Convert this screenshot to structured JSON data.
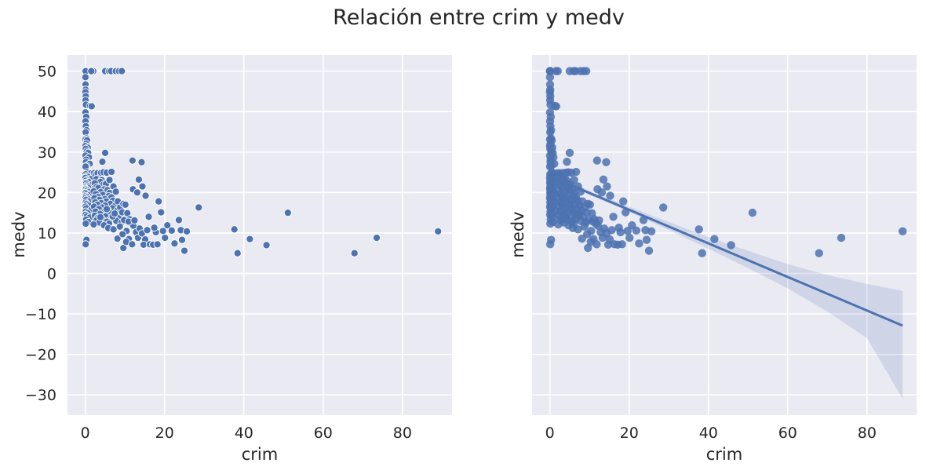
{
  "figure": {
    "suptitle": "Relación entre crim y medv"
  },
  "chart_data": [
    {
      "type": "scatter",
      "title": "",
      "xlabel": "crim",
      "ylabel": "medv",
      "xlim": [
        -4.5,
        92.5
      ],
      "ylim": [
        -35,
        54
      ],
      "xticks": [
        0,
        20,
        40,
        60,
        80
      ],
      "yticks": [
        -30,
        -20,
        -10,
        0,
        10,
        20,
        30,
        40,
        50
      ],
      "xtick_labels": [
        "0",
        "20",
        "40",
        "60",
        "80"
      ],
      "ytick_labels": [
        "−30",
        "−20",
        "−10",
        "0",
        "10",
        "20",
        "30",
        "40",
        "50"
      ],
      "grid": true,
      "marker": "small circle with white edge",
      "color": "#4c72b0",
      "points": [
        [
          0.01,
          50
        ],
        [
          0.02,
          50
        ],
        [
          0.04,
          50
        ],
        [
          0.06,
          50
        ],
        [
          0.03,
          48.5
        ],
        [
          0.05,
          46.7
        ],
        [
          0.08,
          45.4
        ],
        [
          0.02,
          44.8
        ],
        [
          0.1,
          43.8
        ],
        [
          0.06,
          42.8
        ],
        [
          0.15,
          41.7
        ],
        [
          0.03,
          39.8
        ],
        [
          0.22,
          38.7
        ],
        [
          0.05,
          37.6
        ],
        [
          0.12,
          36.4
        ],
        [
          0.3,
          35.4
        ],
        [
          0.08,
          34.9
        ],
        [
          0.25,
          33.4
        ],
        [
          0.04,
          33.1
        ],
        [
          0.45,
          32.9
        ],
        [
          0.18,
          32
        ],
        [
          0.02,
          31.5
        ],
        [
          0.6,
          31.1
        ],
        [
          0.1,
          30.8
        ],
        [
          0.35,
          30.1
        ],
        [
          0.7,
          29.8
        ],
        [
          0.05,
          29.1
        ],
        [
          0.9,
          28.7
        ],
        [
          0.2,
          28.1
        ],
        [
          0.15,
          27.5
        ],
        [
          1.1,
          27.1
        ],
        [
          0.3,
          26.6
        ],
        [
          0.05,
          26.4
        ],
        [
          0.5,
          25
        ],
        [
          1.3,
          24.7
        ],
        [
          0.08,
          24.5
        ],
        [
          0.25,
          24
        ],
        [
          0.6,
          23.9
        ],
        [
          0.03,
          23.6
        ],
        [
          1.5,
          23.4
        ],
        [
          0.4,
          23.1
        ],
        [
          0.12,
          22.9
        ],
        [
          0.8,
          22.6
        ],
        [
          0.06,
          22.4
        ],
        [
          0.2,
          22.2
        ],
        [
          1.8,
          22
        ],
        [
          0.35,
          21.7
        ],
        [
          0.1,
          21.4
        ],
        [
          0.7,
          21.2
        ],
        [
          0.04,
          21
        ],
        [
          0.15,
          20.8
        ],
        [
          0.5,
          20.6
        ],
        [
          0.25,
          20.3
        ],
        [
          0.9,
          20.1
        ],
        [
          0.07,
          19.9
        ],
        [
          0.3,
          19.6
        ],
        [
          1.2,
          19.4
        ],
        [
          0.12,
          19.1
        ],
        [
          0.45,
          18.9
        ],
        [
          0.05,
          18.6
        ],
        [
          0.65,
          18.4
        ],
        [
          0.2,
          18.2
        ],
        [
          1,
          17.8
        ],
        [
          0.1,
          17.5
        ],
        [
          0.35,
          17.2
        ],
        [
          0.8,
          16.8
        ],
        [
          0.04,
          16.5
        ],
        [
          0.25,
          16.1
        ],
        [
          1.4,
          15.6
        ],
        [
          0.15,
          15.3
        ],
        [
          0.55,
          14.9
        ],
        [
          0.06,
          14.5
        ],
        [
          0.4,
          14.1
        ],
        [
          1.1,
          13.8
        ],
        [
          0.2,
          13.3
        ],
        [
          0.75,
          12.7
        ],
        [
          0.1,
          12.3
        ],
        [
          0.3,
          8.3
        ],
        [
          0.08,
          7.2
        ],
        [
          2,
          50
        ],
        [
          1.5,
          50
        ],
        [
          5,
          50
        ],
        [
          6,
          50
        ],
        [
          6.5,
          50
        ],
        [
          7.7,
          50
        ],
        [
          8.5,
          50
        ],
        [
          9.2,
          50
        ],
        [
          1.2,
          41.4
        ],
        [
          1.6,
          41.3
        ],
        [
          2.2,
          24.8
        ],
        [
          2.6,
          24.4
        ],
        [
          3.1,
          24.8
        ],
        [
          3.5,
          23.6
        ],
        [
          2.8,
          23.3
        ],
        [
          4.1,
          23.1
        ],
        [
          3.8,
          22.6
        ],
        [
          2.4,
          22.3
        ],
        [
          4.5,
          21.9
        ],
        [
          5.2,
          22.1
        ],
        [
          2.9,
          21.4
        ],
        [
          3.3,
          21.1
        ],
        [
          4.8,
          20.8
        ],
        [
          5.6,
          20.6
        ],
        [
          2.1,
          20.3
        ],
        [
          3.9,
          20.1
        ],
        [
          6.1,
          19.9
        ],
        [
          2.7,
          19.6
        ],
        [
          4.4,
          19.4
        ],
        [
          5.9,
          19.1
        ],
        [
          3.2,
          18.9
        ],
        [
          6.6,
          18.8
        ],
        [
          2.3,
          18.6
        ],
        [
          4.9,
          18.4
        ],
        [
          3.6,
          18.2
        ],
        [
          7,
          18
        ],
        [
          5.3,
          17.8
        ],
        [
          2.5,
          17.6
        ],
        [
          4,
          17.4
        ],
        [
          6.3,
          17.2
        ],
        [
          3,
          17
        ],
        [
          5,
          16.8
        ],
        [
          7.5,
          16.7
        ],
        [
          2.2,
          16.5
        ],
        [
          4.2,
          16.3
        ],
        [
          6.8,
          16.1
        ],
        [
          3.4,
          15.9
        ],
        [
          5.7,
          15.7
        ],
        [
          8,
          15.5
        ],
        [
          2.6,
          15.3
        ],
        [
          4.6,
          15.1
        ],
        [
          6.2,
          14.9
        ],
        [
          3.7,
          14.7
        ],
        [
          7.3,
          14.5
        ],
        [
          2.4,
          14.3
        ],
        [
          5.1,
          14.1
        ],
        [
          8.4,
          13.9
        ],
        [
          3.1,
          13.7
        ],
        [
          6.5,
          13.5
        ],
        [
          4.3,
          13.3
        ],
        [
          2.8,
          13.1
        ],
        [
          7.8,
          13
        ],
        [
          5.5,
          12.8
        ],
        [
          3.5,
          12.6
        ],
        [
          9.1,
          12.6
        ],
        [
          2.1,
          12.1
        ],
        [
          6,
          12.3
        ],
        [
          4.7,
          11.9
        ],
        [
          8.7,
          11.6
        ],
        [
          5.8,
          11.2
        ],
        [
          7.1,
          10.9
        ],
        [
          3.8,
          13.9
        ],
        [
          6.9,
          14.1
        ],
        [
          5.4,
          15.9
        ],
        [
          7.4,
          14.8
        ],
        [
          4,
          24.9
        ],
        [
          4.6,
          25
        ],
        [
          5.4,
          24.9
        ],
        [
          4.3,
          27.6
        ],
        [
          5,
          29.8
        ],
        [
          6.6,
          25.1
        ],
        [
          7.1,
          21.5
        ],
        [
          6.1,
          23.1
        ],
        [
          7.7,
          20.2
        ],
        [
          8.2,
          17.8
        ],
        [
          8.8,
          16.3
        ],
        [
          9.3,
          15.1
        ],
        [
          9.6,
          17.2
        ],
        [
          10.1,
          17
        ],
        [
          10.6,
          14.9
        ],
        [
          11.2,
          13.4
        ],
        [
          9.8,
          13.2
        ],
        [
          10.4,
          10.5
        ],
        [
          11.6,
          12.3
        ],
        [
          12.1,
          11.8
        ],
        [
          12.8,
          10.2
        ],
        [
          13.3,
          8.8
        ],
        [
          11,
          8.5
        ],
        [
          9.6,
          6.3
        ],
        [
          10.3,
          7.8
        ],
        [
          8.1,
          8.6
        ],
        [
          11.8,
          7.2
        ],
        [
          9.4,
          9.7
        ],
        [
          10.9,
          12.8
        ],
        [
          12.4,
          13.1
        ],
        [
          13.7,
          11.1
        ],
        [
          14.3,
          9.9
        ],
        [
          15.1,
          8.4
        ],
        [
          14.7,
          7.1
        ],
        [
          15.6,
          10.7
        ],
        [
          16.3,
          7.2
        ],
        [
          17.1,
          7.1
        ],
        [
          17.8,
          10.2
        ],
        [
          18.2,
          7.2
        ],
        [
          18.5,
          17.8
        ],
        [
          19.1,
          15.1
        ],
        [
          19.6,
          10.5
        ],
        [
          20.1,
          8.8
        ],
        [
          20.7,
          11.9
        ],
        [
          21.8,
          10.6
        ],
        [
          22.5,
          7.4
        ],
        [
          23.6,
          13.2
        ],
        [
          24.1,
          10.7
        ],
        [
          24.4,
          8.3
        ],
        [
          25,
          5.6
        ],
        [
          25.6,
          10.4
        ],
        [
          28.6,
          16.3
        ],
        [
          12,
          20.8
        ],
        [
          13.1,
          20
        ],
        [
          14.4,
          21.5
        ],
        [
          13.5,
          23.2
        ],
        [
          11.9,
          27.9
        ],
        [
          14.2,
          27.5
        ],
        [
          15.2,
          19.2
        ],
        [
          16,
          14
        ],
        [
          17.4,
          11.3
        ],
        [
          37.6,
          10.9
        ],
        [
          38.4,
          5
        ],
        [
          41.5,
          8.5
        ],
        [
          45.7,
          7
        ],
        [
          51.1,
          15
        ],
        [
          67.9,
          5
        ],
        [
          73.5,
          8.8
        ],
        [
          88.98,
          10.4
        ]
      ]
    },
    {
      "type": "scatter",
      "title": "",
      "xlabel": "crim",
      "ylabel": "medv",
      "xlim": [
        -4.5,
        92.5
      ],
      "ylim": [
        -35,
        54
      ],
      "xticks": [
        0,
        20,
        40,
        60,
        80
      ],
      "yticks": [
        -30,
        -20,
        -10,
        0,
        10,
        20,
        30,
        40,
        50
      ],
      "xtick_labels": [
        "0",
        "20",
        "40",
        "60",
        "80"
      ],
      "ytick_labels": [],
      "grid": true,
      "marker": "circle, semi-transparent",
      "color": "#4c72b0",
      "same_points_as_first_panel": true,
      "regression_line": {
        "x": [
          0,
          88.98
        ],
        "y": [
          24.03,
          -12.9
        ]
      },
      "confidence_band": {
        "x": [
          0,
          10,
          20,
          30,
          40,
          50,
          60,
          70,
          80,
          88.98
        ],
        "upper": [
          24.9,
          20.4,
          16.5,
          12.7,
          9,
          5.6,
          2.3,
          -0.4,
          -2.6,
          -4.3
        ],
        "lower": [
          23.1,
          19.4,
          15.2,
          10.7,
          6.1,
          1.3,
          -3.7,
          -9.4,
          -16,
          -31
        ]
      }
    }
  ]
}
